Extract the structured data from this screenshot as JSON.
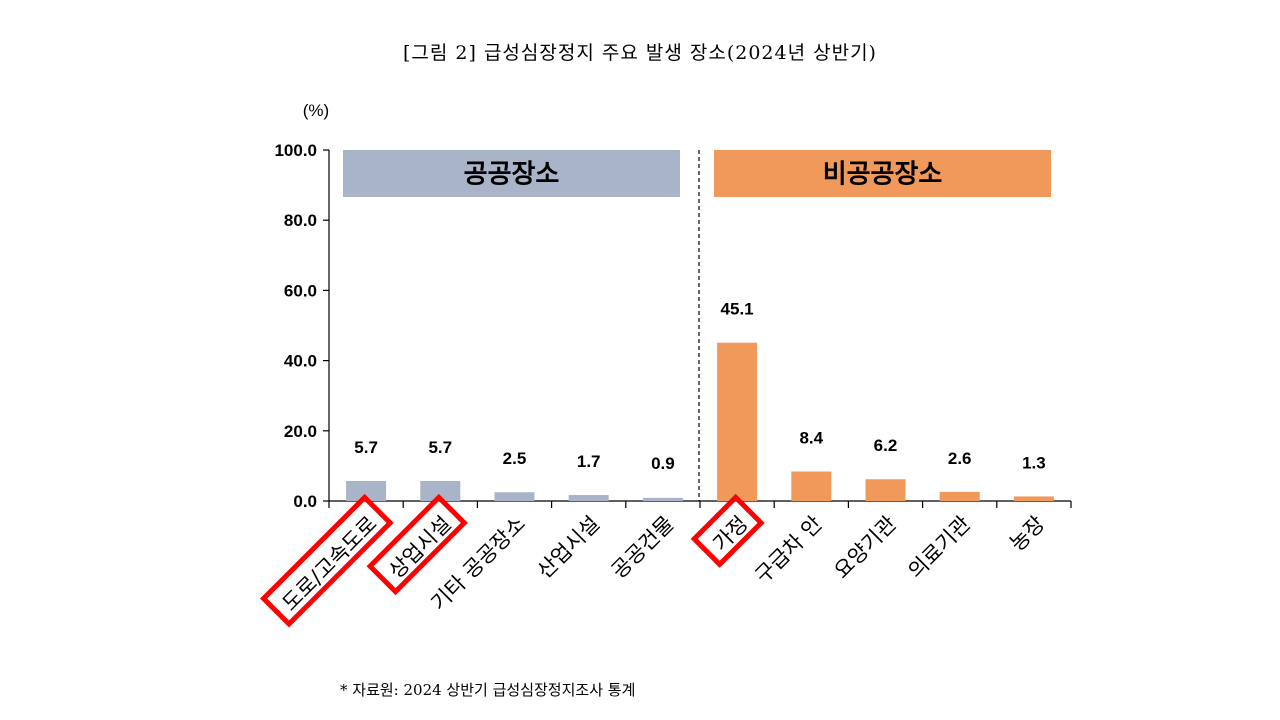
{
  "chart_data": {
    "type": "bar",
    "title": "[그림 2] 급성심장정지 주요 발생 장소(2024년 상반기)",
    "ylabel": "(%)",
    "ylim": [
      0,
      100
    ],
    "yticks": [
      "0.0",
      "20.0",
      "40.0",
      "60.0",
      "80.0",
      "100.0"
    ],
    "categories": [
      "도로/고속도로",
      "상업시설",
      "기타 공공장소",
      "산업시설",
      "공공건물",
      "가정",
      "구급차 안",
      "요양기관",
      "의료기관",
      "농장"
    ],
    "values": [
      5.7,
      5.7,
      2.5,
      1.7,
      0.9,
      45.1,
      8.4,
      6.2,
      2.6,
      1.3
    ],
    "value_labels": [
      "5.7",
      "5.7",
      "2.5",
      "1.7",
      "0.9",
      "45.1",
      "8.4",
      "6.2",
      "2.6",
      "1.3"
    ],
    "groups": [
      {
        "label": "공공장소",
        "start": 0,
        "end": 4,
        "color": "#aab4c8"
      },
      {
        "label": "비공공장소",
        "start": 5,
        "end": 9,
        "color": "#f0995a"
      }
    ],
    "highlighted": [
      "도로/고속도로",
      "상업시설",
      "가정"
    ],
    "highlight_color": "#ff0000",
    "grid": false,
    "legend": "none"
  },
  "source_note": "* 자료원: 2024 상반기 급성심장정지조사 통계"
}
